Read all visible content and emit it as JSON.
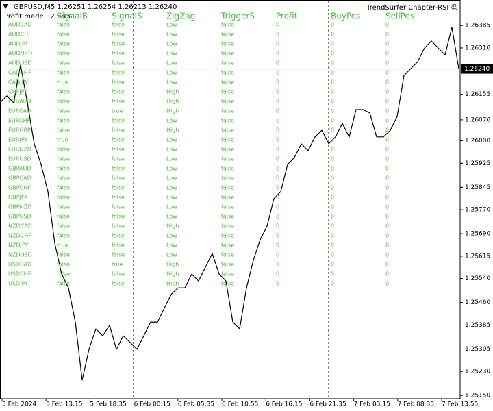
{
  "header": {
    "symbol_info": "GBPUSD,M5  1.26251 1.26254 1.26213 1.26240",
    "profit_made": "Profit made : 2.98%",
    "indicator_name": "TrendSurfer Chapter-RSI ☺"
  },
  "table": {
    "columns": [
      "SignalB",
      "SignalS",
      "ZigZag",
      "TriggerS",
      "Profit",
      "BuyPos",
      "SellPos"
    ],
    "rows": [
      [
        "AUDCAD",
        "false",
        "false",
        "Low",
        "false",
        "0",
        "0",
        "0"
      ],
      [
        "AUDCHF",
        "false",
        "false",
        "Low",
        "false",
        "0",
        "0",
        "0"
      ],
      [
        "AUDJPY",
        "false",
        "false",
        "Low",
        "false",
        "0",
        "0",
        "0"
      ],
      [
        "AUDNZD",
        "false",
        "false",
        "Low",
        "false",
        "0",
        "0",
        "0"
      ],
      [
        "AUDUSD",
        "false",
        "false",
        "Low",
        "false",
        "0",
        "0",
        "0"
      ],
      [
        "CADCHF",
        "false",
        "false",
        "Low",
        "false",
        "0",
        "0",
        "0"
      ],
      [
        "CADJPY",
        "true",
        "false",
        "Low",
        "false",
        "0",
        "0",
        "0"
      ],
      [
        "CHFJPY",
        "false",
        "false",
        "High",
        "false",
        "0",
        "0",
        "0"
      ],
      [
        "EURAUD",
        "false",
        "false",
        "High",
        "false",
        "0",
        "0",
        "0"
      ],
      [
        "EURCAD",
        "false",
        "true",
        "High",
        "false",
        "0",
        "0",
        "0"
      ],
      [
        "EURCHF",
        "false",
        "false",
        "Low",
        "false",
        "0",
        "0",
        "0"
      ],
      [
        "EURGBP",
        "false",
        "false",
        "High",
        "false",
        "0",
        "0",
        "0"
      ],
      [
        "EURJPY",
        "true",
        "false",
        "Low",
        "false",
        "0",
        "0",
        "0"
      ],
      [
        "EURNZD",
        "false",
        "false",
        "Low",
        "false",
        "0",
        "0",
        "0"
      ],
      [
        "EURUSD",
        "false",
        "false",
        "Low",
        "false",
        "0",
        "0",
        "0"
      ],
      [
        "GBPAUD",
        "false",
        "false",
        "Low",
        "false",
        "0",
        "0",
        "0"
      ],
      [
        "GBPCAD",
        "false",
        "false",
        "Low",
        "false",
        "0",
        "0",
        "0"
      ],
      [
        "GBPCHF",
        "false",
        "false",
        "Low",
        "false",
        "0",
        "0",
        "0"
      ],
      [
        "GBPJPY",
        "false",
        "false",
        "Low",
        "false",
        "0",
        "0",
        "0"
      ],
      [
        "GBPNZD",
        "false",
        "false",
        "Low",
        "false",
        "0",
        "0",
        "0"
      ],
      [
        "GBPUSD",
        "false",
        "false",
        "Low",
        "false",
        "0",
        "0",
        "0"
      ],
      [
        "NZDCAD",
        "false",
        "false",
        "High",
        "false",
        "0",
        "0",
        "0"
      ],
      [
        "NZDCHF",
        "false",
        "false",
        "Low",
        "false",
        "0",
        "0",
        "0"
      ],
      [
        "NZDJPY",
        "true",
        "false",
        "Low",
        "false",
        "0",
        "0",
        "0"
      ],
      [
        "NZDUSD",
        "false",
        "false",
        "Low",
        "false",
        "0",
        "0",
        "0"
      ],
      [
        "USDCAD",
        "false",
        "true",
        "High",
        "false",
        "0",
        "0",
        "0"
      ],
      [
        "USDCHF",
        "false",
        "false",
        "High",
        "false",
        "0",
        "0",
        "0"
      ],
      [
        "USDJPY",
        "false",
        "false",
        "High",
        "false",
        "0",
        "0",
        "0"
      ]
    ]
  },
  "chart_data": {
    "type": "line",
    "color": "#000000",
    "values": [
      1.26127,
      1.2615,
      1.26127,
      1.26253,
      1.26127,
      1.2599,
      1.25921,
      1.2583,
      1.25658,
      1.25555,
      1.25509,
      1.25395,
      1.25201,
      1.25304,
      1.25372,
      1.25349,
      1.25384,
      1.25304,
      1.25349,
      1.25327,
      1.25304,
      1.25349,
      1.25395,
      1.25395,
      1.25441,
      1.25487,
      1.25509,
      1.25509,
      1.25555,
      1.25532,
      1.25578,
      1.25624,
      1.25555,
      1.25532,
      1.25395,
      1.25372,
      1.25509,
      1.25601,
      1.2567,
      1.25715,
      1.25807,
      1.2583,
      1.25921,
      1.25944,
      1.2599,
      1.25967,
      1.26013,
      1.26035,
      1.2599,
      1.26013,
      1.26058,
      1.26013,
      1.26104,
      1.26104,
      1.26093,
      1.26013,
      1.26013,
      1.26035,
      1.26081,
      1.26218,
      1.26241,
      1.26264,
      1.2631,
      1.26333,
      1.2631,
      1.26287,
      1.26379,
      1.26241
    ],
    "xtick_labels": [
      "5 Feb 2024",
      "5 Feb 13:15",
      "5 Feb 18:35",
      "6 Feb 00:15",
      "6 Feb 05:35",
      "6 Feb 10:55",
      "6 Feb 16:15",
      "6 Feb 21:35",
      "7 Feb 03:15",
      "7 Feb 08:35",
      "7 Feb 13:55"
    ],
    "ylim": [
      1.25139,
      1.2647
    ],
    "yticks": [
      1.26385,
      {
        "value": 1.2631,
        "label": "1.26310"
      },
      1.26155,
      {
        "value": 1.2607,
        "label": "1.26070"
      },
      {
        "value": 1.26,
        "label": "1.26000"
      },
      1.25925,
      1.25845,
      {
        "value": 1.2577,
        "label": "1.25770"
      },
      {
        "value": 1.2569,
        "label": "1.25690"
      },
      1.25615,
      {
        "value": 1.2554,
        "label": "1.25540"
      },
      {
        "value": 1.2546,
        "label": "1.25460"
      },
      1.25385,
      1.25305,
      {
        "value": 1.2523,
        "label": "1.25230"
      },
      {
        "value": 1.2515,
        "label": "1.25150"
      }
    ],
    "price_marker": {
      "value": 1.2624,
      "label": "1.26240"
    }
  }
}
